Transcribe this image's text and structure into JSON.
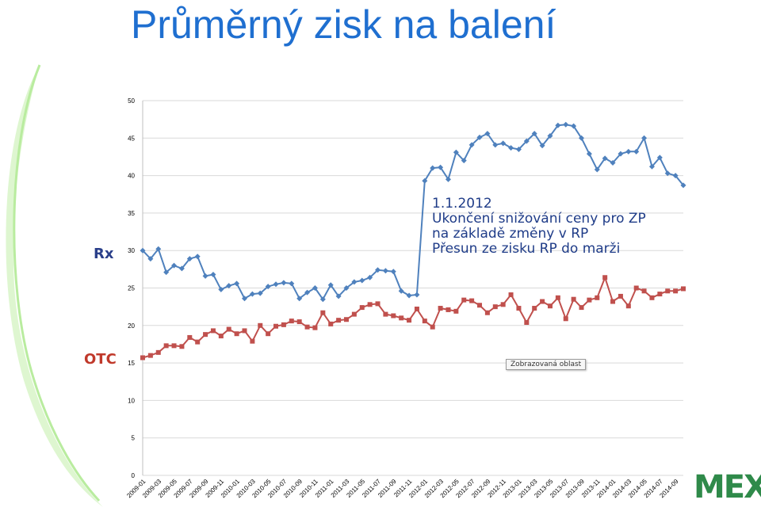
{
  "title": "Průměrný zisk na balení",
  "labels": {
    "rx": "Rx",
    "otc": "OTC"
  },
  "annotation": {
    "line1": "1.1.2012",
    "line2": "Ukončení snižování ceny pro ZP",
    "line3": "na základě změny v RP",
    "line4": "Přesun ze zisku RP do marži"
  },
  "tooltip": "Zobrazovaná oblast",
  "logo": {
    "text": "MEX"
  },
  "colors": {
    "title": "#1f6fd0",
    "rx": "#4f81bd",
    "otc": "#c0504d",
    "rx_label": "#2a3f8a",
    "otc_label": "#c0392b",
    "annotation": "#1f3c88",
    "logo": "#2f8a4a",
    "gridline": "#d9d9d9"
  },
  "chart_data": {
    "type": "line",
    "title": "",
    "xlabel": "",
    "ylabel": "",
    "ylim": [
      0,
      50
    ],
    "yticks": [
      0,
      5,
      10,
      15,
      20,
      25,
      30,
      35,
      40,
      45,
      50
    ],
    "grid": true,
    "x_tick_labels": [
      "2009-01",
      "2009-03",
      "2009-05",
      "2009-07",
      "2009-09",
      "2009-11",
      "2010-01",
      "2010-03",
      "2010-05",
      "2010-07",
      "2010-09",
      "2010-11",
      "2011-01",
      "2011-03",
      "2011-05",
      "2011-07",
      "2011-09",
      "2011-11",
      "2012-01",
      "2012-03",
      "2012-05",
      "2012-07",
      "2012-09",
      "2012-11",
      "2013-01",
      "2013-03",
      "2013-05",
      "2013-07",
      "2013-09",
      "2013-11",
      "2014-01",
      "2014-03",
      "2014-05",
      "2014-07",
      "2014-09"
    ],
    "x": [
      "2009-01",
      "2009-02",
      "2009-03",
      "2009-04",
      "2009-05",
      "2009-06",
      "2009-07",
      "2009-08",
      "2009-09",
      "2009-10",
      "2009-11",
      "2009-12",
      "2010-01",
      "2010-02",
      "2010-03",
      "2010-04",
      "2010-05",
      "2010-06",
      "2010-07",
      "2010-08",
      "2010-09",
      "2010-10",
      "2010-11",
      "2010-12",
      "2011-01",
      "2011-02",
      "2011-03",
      "2011-04",
      "2011-05",
      "2011-06",
      "2011-07",
      "2011-08",
      "2011-09",
      "2011-10",
      "2011-11",
      "2011-12",
      "2012-01",
      "2012-02",
      "2012-03",
      "2012-04",
      "2012-05",
      "2012-06",
      "2012-07",
      "2012-08",
      "2012-09",
      "2012-10",
      "2012-11",
      "2012-12",
      "2013-01",
      "2013-02",
      "2013-03",
      "2013-04",
      "2013-05",
      "2013-06",
      "2013-07",
      "2013-08",
      "2013-09",
      "2013-10",
      "2013-11",
      "2013-12",
      "2014-01",
      "2014-02",
      "2014-03",
      "2014-04",
      "2014-05",
      "2014-06",
      "2014-07",
      "2014-08",
      "2014-09",
      "2014-10"
    ],
    "series": [
      {
        "name": "",
        "color": "#4f81bd",
        "marker": "diamond",
        "values": [
          30.0,
          28.9,
          30.2,
          27.1,
          28.0,
          27.6,
          28.9,
          29.2,
          26.6,
          26.8,
          24.8,
          25.3,
          25.6,
          23.6,
          24.2,
          24.3,
          25.2,
          25.5,
          25.7,
          25.6,
          23.6,
          24.4,
          25.0,
          23.5,
          25.4,
          23.9,
          25.0,
          25.8,
          26.0,
          26.4,
          27.4,
          27.3,
          27.2,
          24.6,
          24.0,
          24.1,
          39.3,
          41.0,
          41.1,
          39.5,
          43.1,
          42.0,
          44.1,
          45.1,
          45.6,
          44.1,
          44.3,
          43.7,
          43.5,
          44.6,
          45.6,
          44.0,
          45.3,
          46.7,
          46.8,
          46.6,
          45.0,
          42.9,
          40.8,
          42.3,
          41.7,
          42.9,
          43.2,
          43.2,
          45.0,
          41.2,
          42.4,
          40.3,
          40.0,
          38.7
        ]
      },
      {
        "name": "",
        "color": "#c0504d",
        "marker": "square",
        "values": [
          15.7,
          16.0,
          16.4,
          17.3,
          17.3,
          17.2,
          18.4,
          17.8,
          18.8,
          19.3,
          18.6,
          19.5,
          18.9,
          19.3,
          17.9,
          20.0,
          18.9,
          19.9,
          20.1,
          20.6,
          20.5,
          19.8,
          19.7,
          21.7,
          20.2,
          20.7,
          20.8,
          21.5,
          22.4,
          22.8,
          22.9,
          21.5,
          21.3,
          21.0,
          20.7,
          22.2,
          20.6,
          19.8,
          22.3,
          22.1,
          21.9,
          23.4,
          23.3,
          22.7,
          21.7,
          22.5,
          22.8,
          24.1,
          22.3,
          20.4,
          22.3,
          23.2,
          22.6,
          23.7,
          20.9,
          23.5,
          22.4,
          23.4,
          23.7,
          26.4,
          23.2,
          23.9,
          22.6,
          25.0,
          24.6,
          23.7,
          24.2,
          24.6,
          24.6,
          24.9
        ]
      }
    ]
  }
}
